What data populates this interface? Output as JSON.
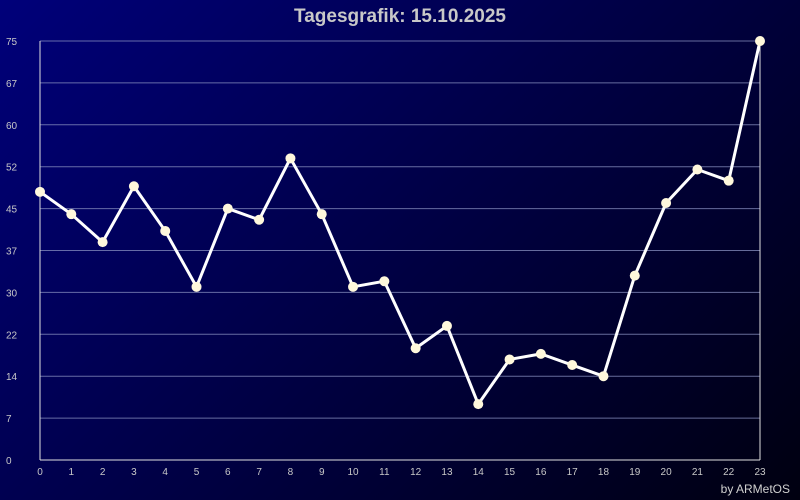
{
  "chart_data": {
    "type": "line",
    "title": "Tagesgrafik: 15.10.2025",
    "credit": "by ARMetOS",
    "x": [
      0,
      1,
      2,
      3,
      4,
      5,
      6,
      7,
      8,
      9,
      10,
      11,
      12,
      13,
      14,
      15,
      16,
      17,
      18,
      19,
      20,
      21,
      22,
      23
    ],
    "x_ticks": [
      "0",
      "1",
      "2",
      "3",
      "4",
      "5",
      "6",
      "7",
      "8",
      "9",
      "10",
      "11",
      "12",
      "13",
      "14",
      "15",
      "16",
      "17",
      "18",
      "19",
      "20",
      "21",
      "22",
      "23"
    ],
    "y_ticks": [
      "0",
      "7",
      "14",
      "22",
      "30",
      "37",
      "45",
      "52",
      "60",
      "67",
      "75"
    ],
    "ylim": [
      0,
      75
    ],
    "series": [
      {
        "values": [
          48,
          44,
          39,
          49,
          41,
          31,
          45,
          43,
          54,
          44,
          31,
          32,
          20,
          24,
          10,
          18,
          19,
          17,
          15,
          33,
          46,
          52,
          50,
          75
        ]
      }
    ],
    "grid": true,
    "colors": {
      "line": "#ffffff",
      "marker": "#fff8dc",
      "grid": "#8890c0",
      "axis": "#e0e0e0"
    }
  }
}
